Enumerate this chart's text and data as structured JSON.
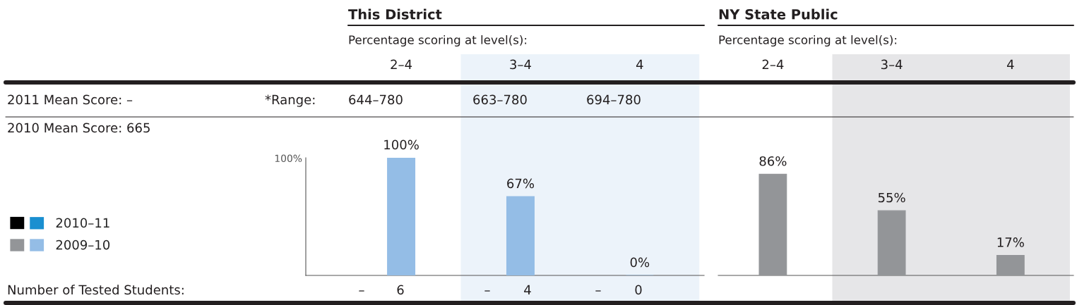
{
  "chart_data": [
    {
      "type": "bar",
      "title": "This District",
      "subtitle": "Percentage scoring at level(s):",
      "categories": [
        "2–4",
        "3–4",
        "4"
      ],
      "series": [
        {
          "name": "2010–11",
          "color": "#1a8fd0",
          "values": [
            null,
            null,
            null
          ]
        },
        {
          "name": "2009–10",
          "color": "#94bde6",
          "values": [
            100,
            67,
            0
          ],
          "value_labels": [
            "100%",
            "67%",
            "0%"
          ]
        }
      ],
      "legend": "left",
      "grid": false,
      "bands": [
        {
          "axis": "x",
          "from": "3–4",
          "to": "4",
          "color": "#ecf3fa"
        }
      ],
      "annotations": [
        "100%",
        "2011 Mean Score: –",
        "*Range:",
        "644–780",
        "663–780",
        "694–780",
        "2010 Mean Score: 665",
        "Number of Tested Students:",
        "–",
        "6",
        "–",
        "4",
        "–",
        "0"
      ]
    },
    {
      "type": "bar",
      "title": "NY State Public",
      "subtitle": "Percentage scoring at level(s):",
      "categories": [
        "2–4",
        "3–4",
        "4"
      ],
      "series": [
        {
          "color": "#000000",
          "values": [
            null,
            null,
            null
          ]
        },
        {
          "color": "#939598",
          "values": [
            86,
            55,
            17
          ],
          "value_labels": [
            "86%",
            "55%",
            "17%"
          ]
        }
      ],
      "tick_labels": "x",
      "grid": false,
      "bands": [
        {
          "axis": "x",
          "from": "3–4",
          "to": "4",
          "color": "#e6e6e8"
        }
      ]
    }
  ]
}
